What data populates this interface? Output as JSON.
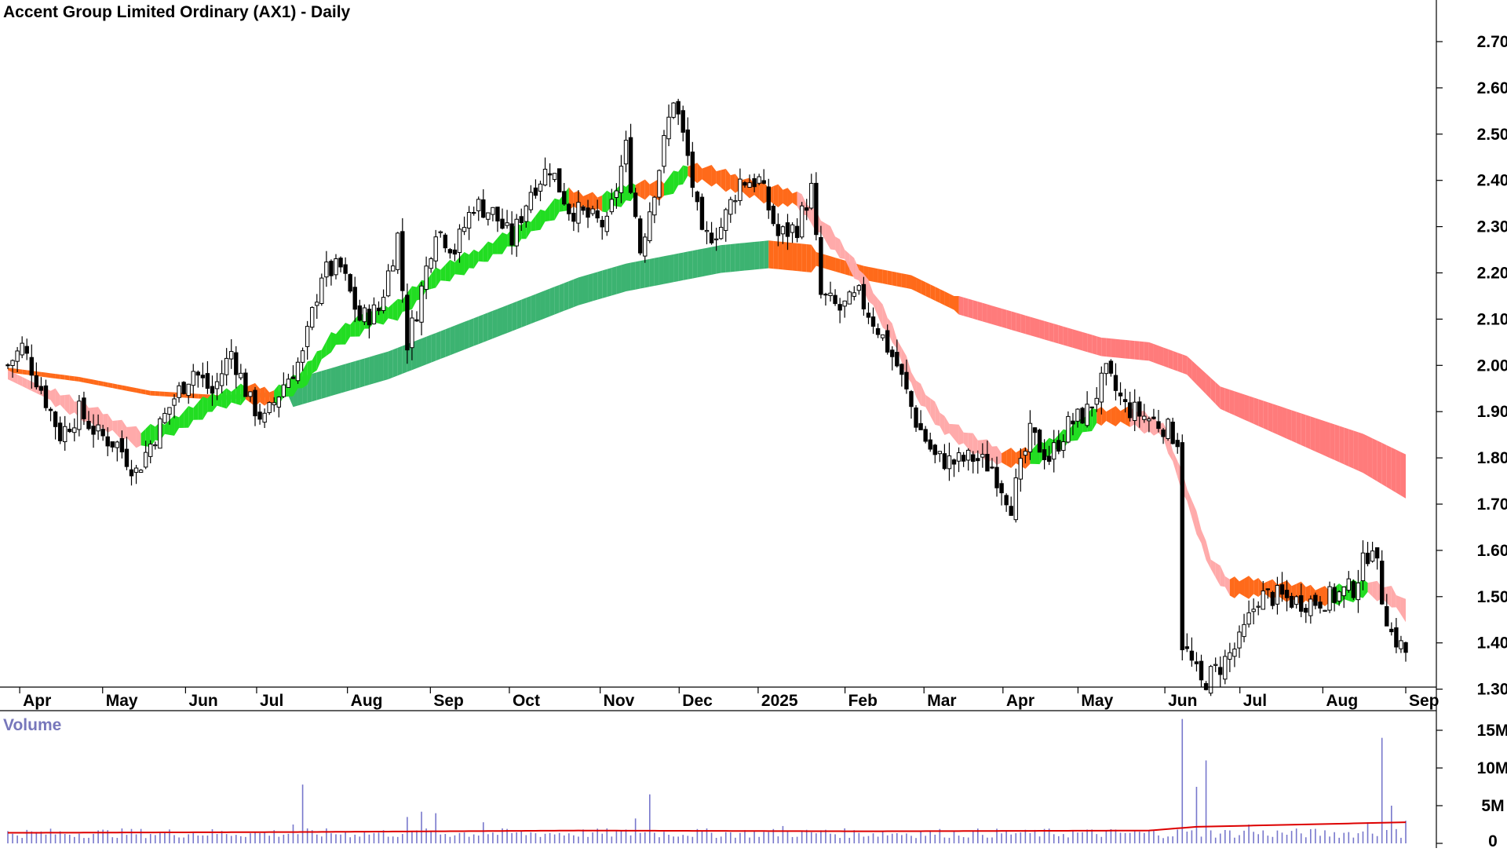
{
  "chart_data": [
    {
      "type": "candlestick",
      "title": "Accent Group Limited Ordinary (AX1) - Daily",
      "y_ticks": [
        "2.70",
        "2.60",
        "2.50",
        "2.40",
        "2.30",
        "2.20",
        "2.10",
        "2.00",
        "1.90",
        "1.80",
        "1.70",
        "1.60",
        "1.50",
        "1.40",
        "1.30"
      ],
      "ylim": [
        1.25,
        2.72
      ],
      "x_ticks": [
        "Apr",
        "May",
        "Jun",
        "Jul",
        "Aug",
        "Sep",
        "Oct",
        "Nov",
        "Dec",
        "2025",
        "Feb",
        "Mar",
        "Apr",
        "May",
        "Jun",
        "Jul",
        "Aug",
        "Sep"
      ],
      "grid": false,
      "series": [
        {
          "kind": "price_close_approx",
          "points": [
            [
              0,
              2.0
            ],
            [
              3,
              2.04
            ],
            [
              7,
              1.95
            ],
            [
              11,
              1.85
            ],
            [
              15,
              1.9
            ],
            [
              19,
              1.85
            ],
            [
              23,
              1.83
            ],
            [
              27,
              1.77
            ],
            [
              31,
              1.85
            ],
            [
              35,
              1.93
            ],
            [
              39,
              1.99
            ],
            [
              43,
              1.94
            ],
            [
              47,
              2.03
            ],
            [
              51,
              1.92
            ],
            [
              54,
              1.88
            ],
            [
              58,
              1.96
            ],
            [
              62,
              2.02
            ],
            [
              66,
              2.2
            ],
            [
              70,
              2.21
            ],
            [
              74,
              2.1
            ],
            [
              78,
              2.12
            ],
            [
              82,
              2.28
            ],
            [
              84,
              2.05
            ],
            [
              86,
              2.12
            ],
            [
              90,
              2.3
            ],
            [
              94,
              2.25
            ],
            [
              98,
              2.35
            ],
            [
              102,
              2.33
            ],
            [
              106,
              2.27
            ],
            [
              110,
              2.38
            ],
            [
              114,
              2.43
            ],
            [
              118,
              2.34
            ],
            [
              122,
              2.32
            ],
            [
              126,
              2.3
            ],
            [
              130,
              2.47
            ],
            [
              133,
              2.25
            ],
            [
              137,
              2.43
            ],
            [
              140,
              2.58
            ],
            [
              143,
              2.45
            ],
            [
              146,
              2.27
            ],
            [
              150,
              2.3
            ],
            [
              154,
              2.4
            ],
            [
              158,
              2.4
            ],
            [
              162,
              2.28
            ],
            [
              166,
              2.3
            ],
            [
              169,
              2.38
            ],
            [
              171,
              2.15
            ],
            [
              175,
              2.12
            ],
            [
              179,
              2.15
            ],
            [
              183,
              2.08
            ],
            [
              187,
              2.0
            ],
            [
              191,
              1.88
            ],
            [
              195,
              1.8
            ],
            [
              199,
              1.79
            ],
            [
              203,
              1.8
            ],
            [
              207,
              1.78
            ],
            [
              211,
              1.7
            ],
            [
              215,
              1.85
            ],
            [
              219,
              1.8
            ],
            [
              223,
              1.87
            ],
            [
              227,
              1.9
            ],
            [
              231,
              1.98
            ],
            [
              235,
              1.91
            ],
            [
              239,
              1.89
            ],
            [
              243,
              1.87
            ],
            [
              246,
              1.84
            ],
            [
              247,
              1.4
            ],
            [
              251,
              1.31
            ],
            [
              255,
              1.35
            ],
            [
              259,
              1.4
            ],
            [
              263,
              1.5
            ],
            [
              267,
              1.5
            ],
            [
              271,
              1.49
            ],
            [
              275,
              1.49
            ],
            [
              279,
              1.5
            ],
            [
              283,
              1.52
            ],
            [
              287,
              1.62
            ],
            [
              289,
              1.5
            ],
            [
              291,
              1.42
            ],
            [
              294,
              1.38
            ]
          ]
        },
        {
          "kind": "short_term_ma_ribbon",
          "points": [
            [
              0,
              1.98
            ],
            [
              10,
              1.93
            ],
            [
              20,
              1.88
            ],
            [
              28,
              1.84
            ],
            [
              35,
              1.87
            ],
            [
              43,
              1.92
            ],
            [
              50,
              1.94
            ],
            [
              56,
              1.93
            ],
            [
              62,
              1.97
            ],
            [
              68,
              2.05
            ],
            [
              76,
              2.1
            ],
            [
              82,
              2.12
            ],
            [
              90,
              2.19
            ],
            [
              100,
              2.24
            ],
            [
              110,
              2.3
            ],
            [
              118,
              2.36
            ],
            [
              125,
              2.35
            ],
            [
              132,
              2.38
            ],
            [
              138,
              2.38
            ],
            [
              143,
              2.42
            ],
            [
              148,
              2.41
            ],
            [
              154,
              2.39
            ],
            [
              160,
              2.37
            ],
            [
              166,
              2.36
            ],
            [
              171,
              2.3
            ],
            [
              176,
              2.24
            ],
            [
              180,
              2.18
            ],
            [
              186,
              2.07
            ],
            [
              191,
              1.95
            ],
            [
              197,
              1.87
            ],
            [
              203,
              1.83
            ],
            [
              209,
              1.8
            ],
            [
              215,
              1.8
            ],
            [
              222,
              1.84
            ],
            [
              229,
              1.89
            ],
            [
              236,
              1.89
            ],
            [
              243,
              1.86
            ],
            [
              248,
              1.72
            ],
            [
              253,
              1.57
            ],
            [
              257,
              1.52
            ],
            [
              263,
              1.52
            ],
            [
              270,
              1.51
            ],
            [
              278,
              1.5
            ],
            [
              286,
              1.52
            ],
            [
              291,
              1.5
            ],
            [
              294,
              1.47
            ]
          ]
        },
        {
          "kind": "long_term_ma_ribbon",
          "points": [
            [
              0,
              1.99
            ],
            [
              15,
              1.97
            ],
            [
              30,
              1.94
            ],
            [
              45,
              1.93
            ],
            [
              60,
              1.94
            ],
            [
              70,
              1.97
            ],
            [
              80,
              2.0
            ],
            [
              90,
              2.04
            ],
            [
              100,
              2.08
            ],
            [
              110,
              2.12
            ],
            [
              120,
              2.16
            ],
            [
              130,
              2.19
            ],
            [
              140,
              2.21
            ],
            [
              150,
              2.23
            ],
            [
              160,
              2.24
            ],
            [
              170,
              2.23
            ],
            [
              180,
              2.2
            ],
            [
              190,
              2.18
            ],
            [
              200,
              2.13
            ],
            [
              210,
              2.1
            ],
            [
              220,
              2.07
            ],
            [
              230,
              2.04
            ],
            [
              240,
              2.03
            ],
            [
              248,
              2.0
            ],
            [
              255,
              1.93
            ],
            [
              265,
              1.89
            ],
            [
              275,
              1.85
            ],
            [
              285,
              1.81
            ],
            [
              294,
              1.76
            ]
          ]
        }
      ]
    },
    {
      "type": "bar",
      "title": "Volume",
      "y_ticks": [
        "15M",
        "10M",
        "5M",
        "0"
      ],
      "ylim": [
        0,
        16000000
      ],
      "series": [
        {
          "kind": "volume_spikes",
          "points": [
            [
              38,
              1200000
            ],
            [
              60,
              2500000
            ],
            [
              62,
              7800000
            ],
            [
              84,
              3500000
            ],
            [
              87,
              4200000
            ],
            [
              90,
              4000000
            ],
            [
              100,
              2800000
            ],
            [
              132,
              3300000
            ],
            [
              135,
              6500000
            ],
            [
              163,
              2300000
            ],
            [
              172,
              1800000
            ],
            [
              214,
              1800000
            ],
            [
              247,
              16500000
            ],
            [
              250,
              7500000
            ],
            [
              252,
              11000000
            ],
            [
              261,
              2500000
            ],
            [
              286,
              2800000
            ],
            [
              289,
              14000000
            ],
            [
              291,
              5000000
            ],
            [
              294,
              3000000
            ]
          ]
        },
        {
          "kind": "volume_moving_average",
          "points": [
            [
              0,
              1400000
            ],
            [
              60,
              1500000
            ],
            [
              120,
              1700000
            ],
            [
              180,
              1600000
            ],
            [
              240,
              1700000
            ],
            [
              250,
              2200000
            ],
            [
              294,
              2800000
            ]
          ]
        }
      ]
    }
  ]
}
